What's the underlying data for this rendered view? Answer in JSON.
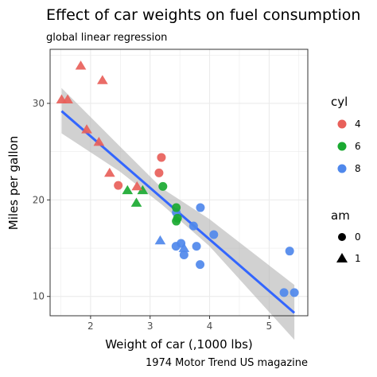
{
  "chart_data": {
    "type": "scatter",
    "title": "Effect of car weights on fuel consumption",
    "subtitle": "global linear regression",
    "xlabel": "Weight of car (,1000 lbs)",
    "ylabel": "Miles per gallon",
    "caption": "1974 Motor Trend US magazine",
    "xlim": [
      1.32,
      5.65
    ],
    "ylim": [
      8.0,
      35.6
    ],
    "xticks": [
      2,
      3,
      4,
      5
    ],
    "yticks": [
      10,
      20,
      30
    ],
    "grid": true,
    "colors": {
      "4": "#e8605a",
      "6": "#1aa931",
      "8": "#4f88ec"
    },
    "legends": [
      {
        "title": "cyl",
        "position": "right",
        "entries": [
          {
            "label": "4",
            "color": "#e8605a"
          },
          {
            "label": "6",
            "color": "#1aa931"
          },
          {
            "label": "8",
            "color": "#4f88ec"
          }
        ]
      },
      {
        "title": "am",
        "position": "right",
        "entries": [
          {
            "label": "0",
            "shape": "circle"
          },
          {
            "label": "1",
            "shape": "triangle"
          }
        ]
      }
    ],
    "regression": {
      "x": [
        1.513,
        5.424
      ],
      "y": [
        29.2,
        8.3
      ],
      "band_x": [
        1.513,
        2.5,
        3.2,
        4.0,
        5.424
      ],
      "band_low": [
        26.9,
        22.9,
        19.5,
        15.2,
        5.5
      ],
      "band_high": [
        31.6,
        25.5,
        21.2,
        18.0,
        11.2
      ]
    },
    "points": [
      {
        "x": 2.62,
        "y": 21.0,
        "cyl": "6",
        "am": "1"
      },
      {
        "x": 2.875,
        "y": 21.0,
        "cyl": "6",
        "am": "1"
      },
      {
        "x": 2.32,
        "y": 22.8,
        "cyl": "4",
        "am": "1"
      },
      {
        "x": 3.215,
        "y": 21.4,
        "cyl": "6",
        "am": "0"
      },
      {
        "x": 3.44,
        "y": 18.7,
        "cyl": "8",
        "am": "0"
      },
      {
        "x": 3.46,
        "y": 18.1,
        "cyl": "6",
        "am": "0"
      },
      {
        "x": 3.57,
        "y": 14.3,
        "cyl": "8",
        "am": "0"
      },
      {
        "x": 3.19,
        "y": 24.4,
        "cyl": "4",
        "am": "0"
      },
      {
        "x": 3.15,
        "y": 22.8,
        "cyl": "4",
        "am": "0"
      },
      {
        "x": 3.44,
        "y": 19.2,
        "cyl": "6",
        "am": "0"
      },
      {
        "x": 3.44,
        "y": 17.8,
        "cyl": "6",
        "am": "0"
      },
      {
        "x": 4.07,
        "y": 16.4,
        "cyl": "8",
        "am": "0"
      },
      {
        "x": 3.73,
        "y": 17.3,
        "cyl": "8",
        "am": "0"
      },
      {
        "x": 3.78,
        "y": 15.2,
        "cyl": "8",
        "am": "0"
      },
      {
        "x": 5.25,
        "y": 10.4,
        "cyl": "8",
        "am": "0"
      },
      {
        "x": 5.424,
        "y": 10.4,
        "cyl": "8",
        "am": "0"
      },
      {
        "x": 5.345,
        "y": 14.7,
        "cyl": "8",
        "am": "0"
      },
      {
        "x": 2.2,
        "y": 32.4,
        "cyl": "4",
        "am": "1"
      },
      {
        "x": 1.615,
        "y": 30.4,
        "cyl": "4",
        "am": "1"
      },
      {
        "x": 1.835,
        "y": 33.9,
        "cyl": "4",
        "am": "1"
      },
      {
        "x": 2.465,
        "y": 21.5,
        "cyl": "4",
        "am": "0"
      },
      {
        "x": 3.52,
        "y": 15.5,
        "cyl": "8",
        "am": "0"
      },
      {
        "x": 3.435,
        "y": 15.2,
        "cyl": "8",
        "am": "0"
      },
      {
        "x": 3.84,
        "y": 13.3,
        "cyl": "8",
        "am": "0"
      },
      {
        "x": 3.845,
        "y": 19.2,
        "cyl": "8",
        "am": "0"
      },
      {
        "x": 1.935,
        "y": 27.3,
        "cyl": "4",
        "am": "1"
      },
      {
        "x": 2.14,
        "y": 26.0,
        "cyl": "4",
        "am": "1"
      },
      {
        "x": 1.513,
        "y": 30.4,
        "cyl": "4",
        "am": "1"
      },
      {
        "x": 3.17,
        "y": 15.8,
        "cyl": "8",
        "am": "1"
      },
      {
        "x": 2.77,
        "y": 19.7,
        "cyl": "6",
        "am": "1"
      },
      {
        "x": 3.57,
        "y": 15.0,
        "cyl": "8",
        "am": "1"
      },
      {
        "x": 2.78,
        "y": 21.4,
        "cyl": "4",
        "am": "1"
      }
    ]
  }
}
